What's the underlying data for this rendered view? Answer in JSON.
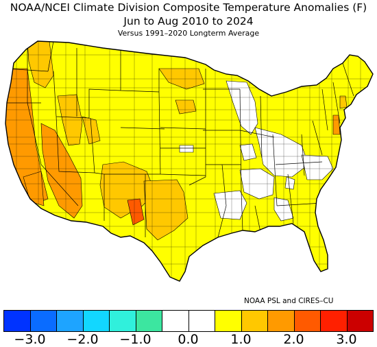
{
  "title_line1": "NOAA/NCEI Climate Division Composite Temperature Anomalies (F)",
  "title_line2": "Jun to Aug 2010 to 2024",
  "title_line3": "Versus 1991–2020 Longterm Average",
  "credit": "NOAA PSL and CIRES–CU",
  "legend": {
    "colors": [
      "#0033ff",
      "#0a6cff",
      "#1ea4ff",
      "#12d7ff",
      "#30f0dc",
      "#3ce6a0",
      "#ffffff",
      "#ffffff",
      "#ffff00",
      "#ffc800",
      "#ff9a00",
      "#ff5a00",
      "#ff2000",
      "#cc0000"
    ],
    "ticks": [
      {
        "label": "−3.0",
        "value": -3.0
      },
      {
        "label": "−2.0",
        "value": -2.0
      },
      {
        "label": "−1.0",
        "value": -1.0
      },
      {
        "label": "0.0",
        "value": 0.0
      },
      {
        "label": "1.0",
        "value": 1.0
      },
      {
        "label": "2.0",
        "value": 2.0
      },
      {
        "label": "3.0",
        "value": 3.0
      }
    ],
    "min": -3.5,
    "max": 3.5
  },
  "map_colors": {
    "near_normal": "#ffffff",
    "warm_0_5_1_0": "#ffff00",
    "warm_1_0_1_5": "#ffc800",
    "warm_1_5_2_0": "#ff9a00",
    "warm_2_0_2_5": "#ff5a00"
  }
}
